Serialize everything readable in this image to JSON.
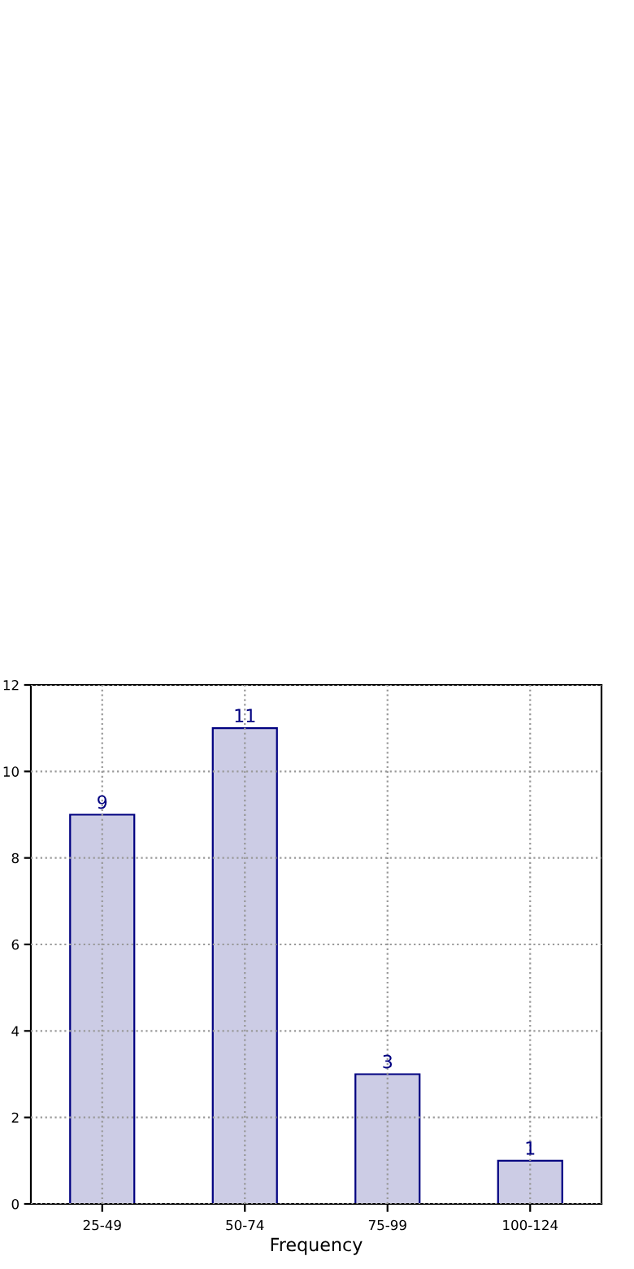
{
  "chart_data": {
    "type": "bar",
    "xlabel": "Frequency",
    "categories": [
      "25-49",
      "50-74",
      "75-99",
      "100-124"
    ],
    "values": [
      9,
      11,
      3,
      1
    ],
    "color": "#ccccE5",
    "ylim": [
      0,
      12
    ],
    "yticks": [
      0,
      2,
      4,
      6,
      8,
      10,
      12
    ],
    "grid": true,
    "data_labels": true
  }
}
